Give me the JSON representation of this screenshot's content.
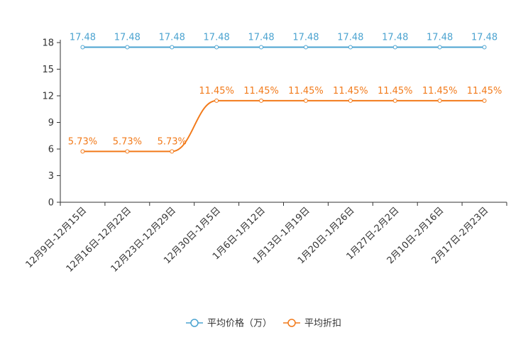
{
  "chart_data": {
    "type": "line",
    "categories": [
      "12月9日-12月15日",
      "12月16日-12月22日",
      "12月23日-12月29日",
      "12月30日-1月5日",
      "1月6日-1月12日",
      "1月13日-1月19日",
      "1月20日-1月26日",
      "1月27日-2月2日",
      "2月10日-2月16日",
      "2月17日-2月23日"
    ],
    "series": [
      {
        "name": "平均价格（万）",
        "color": "#4ba3d0",
        "values": [
          17.48,
          17.48,
          17.48,
          17.48,
          17.48,
          17.48,
          17.48,
          17.48,
          17.48,
          17.48
        ],
        "labels": [
          "17.48",
          "17.48",
          "17.48",
          "17.48",
          "17.48",
          "17.48",
          "17.48",
          "17.48",
          "17.48",
          "17.48"
        ]
      },
      {
        "name": "平均折扣",
        "color": "#f27a1a",
        "values": [
          5.73,
          5.73,
          5.73,
          11.45,
          11.45,
          11.45,
          11.45,
          11.45,
          11.45,
          11.45
        ],
        "labels": [
          "5.73%",
          "5.73%",
          "5.73%",
          "11.45%",
          "11.45%",
          "11.45%",
          "11.45%",
          "11.45%",
          "11.45%",
          "11.45%"
        ]
      }
    ],
    "yticks": [
      "0",
      "3",
      "6",
      "9",
      "12",
      "15",
      "18"
    ],
    "ylim": [
      0,
      18
    ],
    "title": "",
    "xlabel": "",
    "ylabel": "",
    "legend": "bottom-center"
  }
}
